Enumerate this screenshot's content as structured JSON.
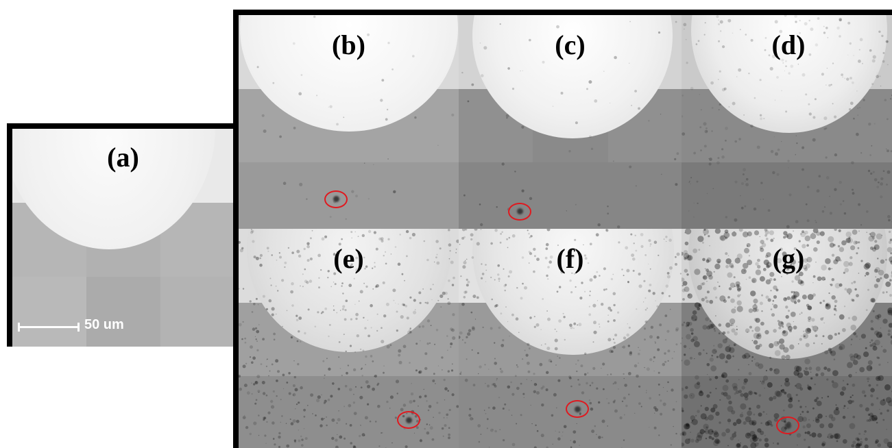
{
  "panels": {
    "a": {
      "label": "(a)"
    },
    "b": {
      "label": "(b)"
    },
    "c": {
      "label": "(c)"
    },
    "d": {
      "label": "(d)"
    },
    "e": {
      "label": "(e)"
    },
    "f": {
      "label": "(f)"
    },
    "g": {
      "label": "(g)"
    }
  },
  "scale_bar": {
    "label": "50 um"
  },
  "colors": {
    "frame": "#000000",
    "marker_circle": "#e0191f",
    "scale_bar": "#ffffff"
  }
}
